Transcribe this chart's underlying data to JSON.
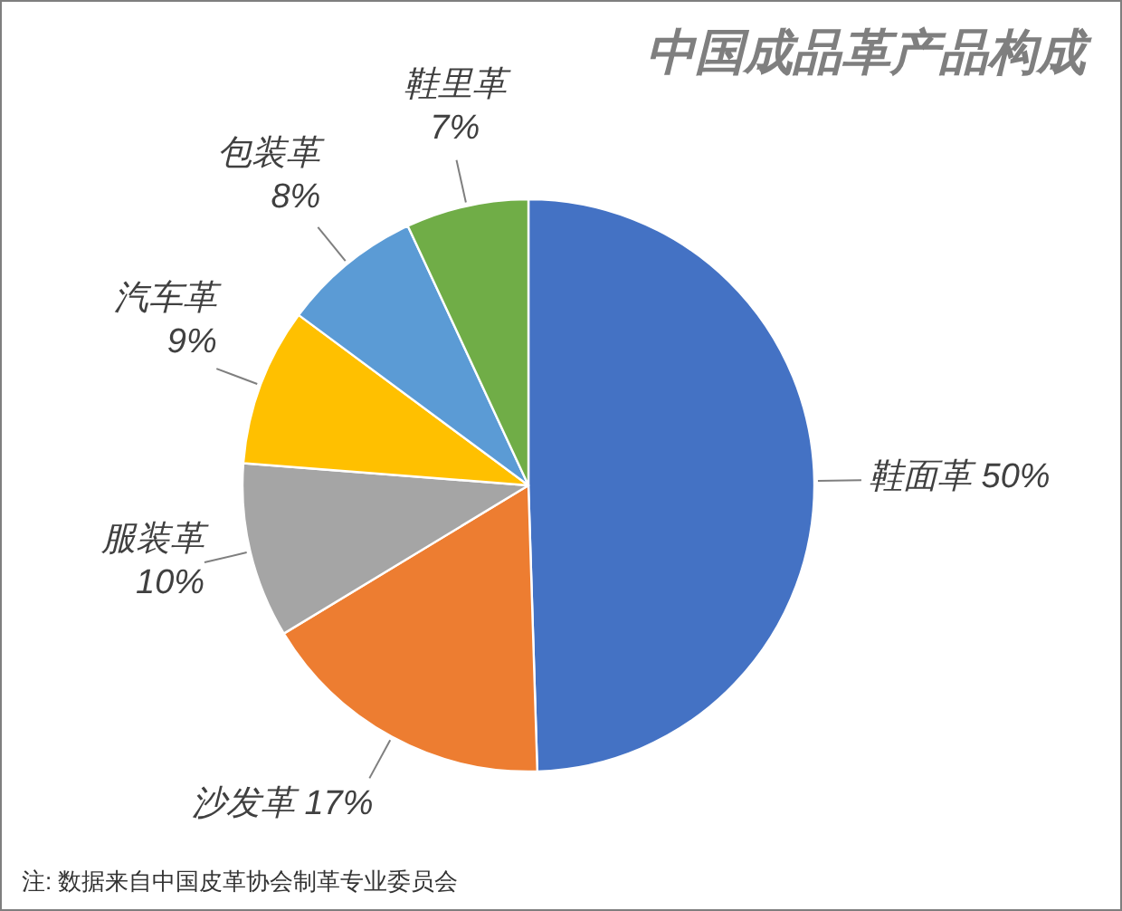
{
  "chart_data": {
    "type": "pie",
    "title": "中国成品革产品构成",
    "categories": [
      "鞋面革",
      "沙发革",
      "服装革",
      "汽车革",
      "包装革",
      "鞋里革"
    ],
    "values": [
      50,
      17,
      10,
      9,
      8,
      7
    ],
    "colors": [
      "#4472c4",
      "#ed7d31",
      "#a5a5a5",
      "#ffc000",
      "#5b9bd5",
      "#70ad47"
    ],
    "value_labels": [
      "50%",
      "17%",
      "10%",
      "9%",
      "8%",
      "7%"
    ],
    "annotations": [
      "注: 数据来自中国皮革协会制革专业委员会"
    ]
  }
}
